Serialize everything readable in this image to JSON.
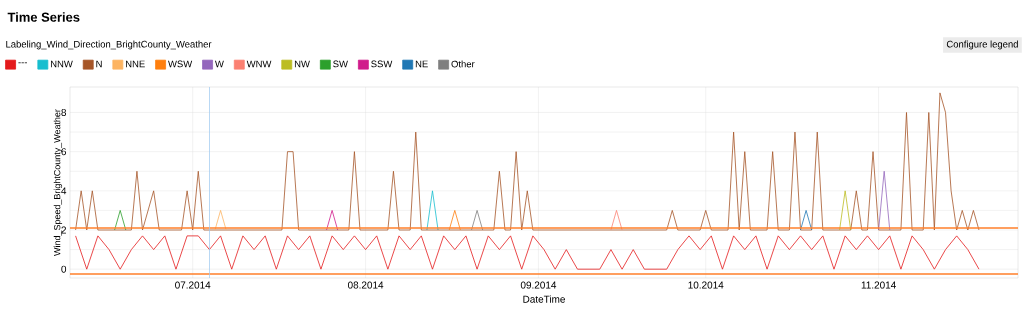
{
  "chart_data": {
    "type": "line",
    "title": "Time Series",
    "legend_title": "Labeling_Wind_Direction_BrightCounty_Weather",
    "xlabel": "DateTime",
    "ylabel": "Wind_Speed_BrightCounty_Weather",
    "annotations": [
      "Configure legend"
    ],
    "xlim": [
      "2014-06-09",
      "2014-11-26"
    ],
    "ylim": [
      -0.45,
      9.3
    ],
    "xticks": [
      {
        "value": "2014-07-01",
        "label": "07.2014"
      },
      {
        "value": "2014-08-01",
        "label": "08.2014"
      },
      {
        "value": "2014-09-01",
        "label": "09.2014"
      },
      {
        "value": "2014-10-01",
        "label": "10.2014"
      },
      {
        "value": "2014-11-01",
        "label": "11.2014"
      }
    ],
    "yticks": [
      0,
      {
        "value": 1,
        "label": null
      },
      2,
      {
        "value": 3,
        "label": null
      },
      4,
      {
        "value": 5,
        "label": null
      },
      6,
      {
        "value": 7,
        "label": null
      },
      8
    ],
    "grid": true,
    "legend": "top",
    "ref_lines": [
      {
        "axis": "y",
        "value": 2.1,
        "color": "#ff7f2a"
      },
      {
        "axis": "y",
        "value": -0.25,
        "color": "#ff7f2a"
      },
      {
        "axis": "x",
        "value": "2014-07-04",
        "color": "#9ec9f0"
      }
    ],
    "series": [
      {
        "name": "---",
        "color": "#e41a1c",
        "x": [
          "2014-06-10",
          "2014-06-12",
          "2014-06-14",
          "2014-06-16",
          "2014-06-18",
          "2014-06-20",
          "2014-06-22",
          "2014-06-24",
          "2014-06-26",
          "2014-06-28",
          "2014-06-30",
          "2014-07-02",
          "2014-07-04",
          "2014-07-06",
          "2014-07-08",
          "2014-07-10",
          "2014-07-12",
          "2014-07-14",
          "2014-07-16",
          "2014-07-18",
          "2014-07-20",
          "2014-07-22",
          "2014-07-24",
          "2014-07-26",
          "2014-07-28",
          "2014-07-30",
          "2014-08-01",
          "2014-08-03",
          "2014-08-05",
          "2014-08-07",
          "2014-08-09",
          "2014-08-11",
          "2014-08-13",
          "2014-08-15",
          "2014-08-17",
          "2014-08-19",
          "2014-08-21",
          "2014-08-23",
          "2014-08-25",
          "2014-08-27",
          "2014-08-29",
          "2014-08-31",
          "2014-09-02",
          "2014-09-04",
          "2014-09-06",
          "2014-09-08",
          "2014-09-10",
          "2014-09-12",
          "2014-09-14",
          "2014-09-16",
          "2014-09-18",
          "2014-09-20",
          "2014-09-22",
          "2014-09-24",
          "2014-09-26",
          "2014-09-28",
          "2014-09-30",
          "2014-10-02",
          "2014-10-04",
          "2014-10-06",
          "2014-10-08",
          "2014-10-10",
          "2014-10-12",
          "2014-10-14",
          "2014-10-16",
          "2014-10-18",
          "2014-10-20",
          "2014-10-22",
          "2014-10-24",
          "2014-10-26",
          "2014-10-28",
          "2014-10-30",
          "2014-11-01",
          "2014-11-03",
          "2014-11-05",
          "2014-11-07",
          "2014-11-09",
          "2014-11-11",
          "2014-11-13",
          "2014-11-15",
          "2014-11-17",
          "2014-11-19"
        ],
        "values": [
          1.7,
          0,
          1.7,
          1,
          0,
          1,
          1.7,
          1,
          1.7,
          0,
          1.7,
          1.7,
          1,
          1.7,
          0,
          1.7,
          1,
          1.7,
          0,
          1.7,
          1,
          1.7,
          0,
          1.7,
          1,
          1.7,
          1,
          1.7,
          0,
          1.7,
          1,
          1.7,
          0,
          1.7,
          1,
          1.7,
          0,
          1.7,
          1,
          1.7,
          0,
          1.7,
          1,
          0,
          1,
          0,
          0,
          0,
          1,
          0,
          1,
          0,
          0,
          0,
          1,
          1.7,
          1,
          1.7,
          0,
          1.7,
          1,
          1.7,
          0,
          1.7,
          1,
          1.7,
          1,
          1.7,
          0,
          1.7,
          1,
          1.7,
          1,
          1.7,
          0,
          1.7,
          1,
          0,
          1,
          1.7,
          1,
          0
        ]
      },
      {
        "name": "NNW",
        "color": "#17becf",
        "x": [
          "2014-08-12",
          "2014-08-13",
          "2014-08-14"
        ],
        "values": [
          2,
          4,
          2
        ]
      },
      {
        "name": "N",
        "color": "#a65628",
        "x": [
          "2014-06-10",
          "2014-06-11",
          "2014-06-12",
          "2014-06-13",
          "2014-06-14",
          "2014-06-20",
          "2014-06-21",
          "2014-06-22",
          "2014-06-24",
          "2014-06-25",
          "2014-06-29",
          "2014-06-30",
          "2014-07-01",
          "2014-07-02",
          "2014-07-03",
          "2014-07-17",
          "2014-07-18",
          "2014-07-19",
          "2014-07-20",
          "2014-07-29",
          "2014-07-30",
          "2014-07-31",
          "2014-08-05",
          "2014-08-06",
          "2014-08-07",
          "2014-08-09",
          "2014-08-10",
          "2014-08-11",
          "2014-08-24",
          "2014-08-25",
          "2014-08-26",
          "2014-08-27",
          "2014-08-28",
          "2014-08-29",
          "2014-08-30",
          "2014-08-31",
          "2014-09-24",
          "2014-09-25",
          "2014-09-26",
          "2014-09-30",
          "2014-10-01",
          "2014-10-02",
          "2014-10-05",
          "2014-10-06",
          "2014-10-07",
          "2014-10-08",
          "2014-10-09",
          "2014-10-12",
          "2014-10-13",
          "2014-10-14",
          "2014-10-16",
          "2014-10-17",
          "2014-10-18",
          "2014-10-20",
          "2014-10-21",
          "2014-10-22",
          "2014-10-27",
          "2014-10-28",
          "2014-10-29",
          "2014-10-30",
          "2014-10-31",
          "2014-11-01",
          "2014-11-05",
          "2014-11-06",
          "2014-11-07",
          "2014-11-09",
          "2014-11-10",
          "2014-11-11",
          "2014-11-12",
          "2014-11-13",
          "2014-11-14",
          "2014-11-15",
          "2014-11-16",
          "2014-11-17",
          "2014-11-18",
          "2014-11-19"
        ],
        "values": [
          2,
          4,
          2,
          4,
          2,
          2,
          5,
          2,
          4,
          2,
          2,
          4,
          2,
          5,
          2,
          2,
          6,
          6,
          2,
          2,
          6,
          2,
          2,
          5,
          2,
          2,
          7,
          2,
          2,
          5,
          2,
          2,
          6,
          2,
          4,
          2,
          2,
          3,
          2,
          2,
          3,
          2,
          2,
          7,
          2,
          6,
          2,
          2,
          6,
          2,
          2,
          7,
          2,
          2,
          7,
          2,
          2,
          4,
          2,
          2,
          6,
          2,
          2,
          8,
          2,
          2,
          8,
          2,
          9,
          8,
          4,
          2,
          3,
          2,
          3,
          2
        ]
      },
      {
        "name": "NNE",
        "color": "#fdb462",
        "x": [
          "2014-07-05",
          "2014-07-06",
          "2014-07-07"
        ],
        "values": [
          2,
          3,
          2
        ]
      },
      {
        "name": "WSW",
        "color": "#ff7f0e",
        "x": [
          "2014-08-16",
          "2014-08-17",
          "2014-08-18"
        ],
        "values": [
          2,
          3,
          2
        ]
      },
      {
        "name": "W",
        "color": "#9467bd",
        "x": [
          "2014-11-01",
          "2014-11-02",
          "2014-11-03"
        ],
        "values": [
          2,
          5,
          2
        ]
      },
      {
        "name": "WNW",
        "color": "#fb8072",
        "x": [
          "2014-09-14",
          "2014-09-15",
          "2014-09-16"
        ],
        "values": [
          2,
          3,
          2
        ]
      },
      {
        "name": "NW",
        "color": "#bcbd22",
        "x": [
          "2014-10-25",
          "2014-10-26",
          "2014-10-27"
        ],
        "values": [
          2,
          4,
          2
        ]
      },
      {
        "name": "SW",
        "color": "#2ca02c",
        "x": [
          "2014-06-17",
          "2014-06-18",
          "2014-06-19"
        ],
        "values": [
          2,
          3,
          2
        ]
      },
      {
        "name": "SSW",
        "color": "#d01c8b",
        "x": [
          "2014-07-25",
          "2014-07-26",
          "2014-07-27"
        ],
        "values": [
          2,
          3,
          2
        ]
      },
      {
        "name": "NE",
        "color": "#1f77b4",
        "x": [
          "2014-10-18",
          "2014-10-19",
          "2014-10-20"
        ],
        "values": [
          2,
          3,
          2
        ]
      },
      {
        "name": "Other",
        "color": "#7f7f7f",
        "x": [
          "2014-08-20",
          "2014-08-21",
          "2014-08-22"
        ],
        "values": [
          2,
          3,
          2
        ]
      }
    ]
  }
}
